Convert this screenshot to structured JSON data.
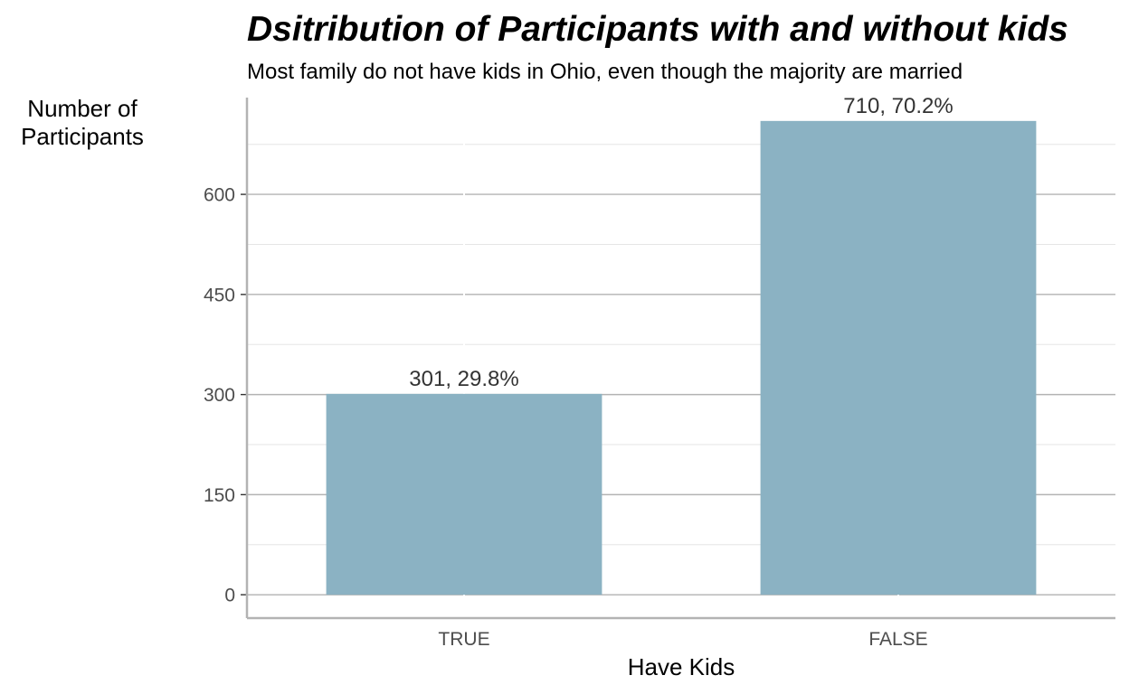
{
  "chart_data": {
    "type": "bar",
    "title": "Dsitribution of Participants with and without kids",
    "subtitle": "Most family do not have kids in Ohio, even though the majority are married",
    "xlabel": "Have Kids",
    "ylabel_lines": [
      "Number of",
      "Participants"
    ],
    "categories": [
      "TRUE",
      "FALSE"
    ],
    "values": [
      301,
      710
    ],
    "percentages": [
      "29.8%",
      "70.2%"
    ],
    "data_labels": [
      "301, 29.8%",
      "710, 70.2%"
    ],
    "yticks": [
      0,
      150,
      300,
      450,
      600
    ],
    "ylim": [
      -35,
      745
    ],
    "grid": true,
    "bar_color": "#8bb2c3",
    "grid_color": "#d9d9d9",
    "axis_color": "#b3b3b3"
  }
}
